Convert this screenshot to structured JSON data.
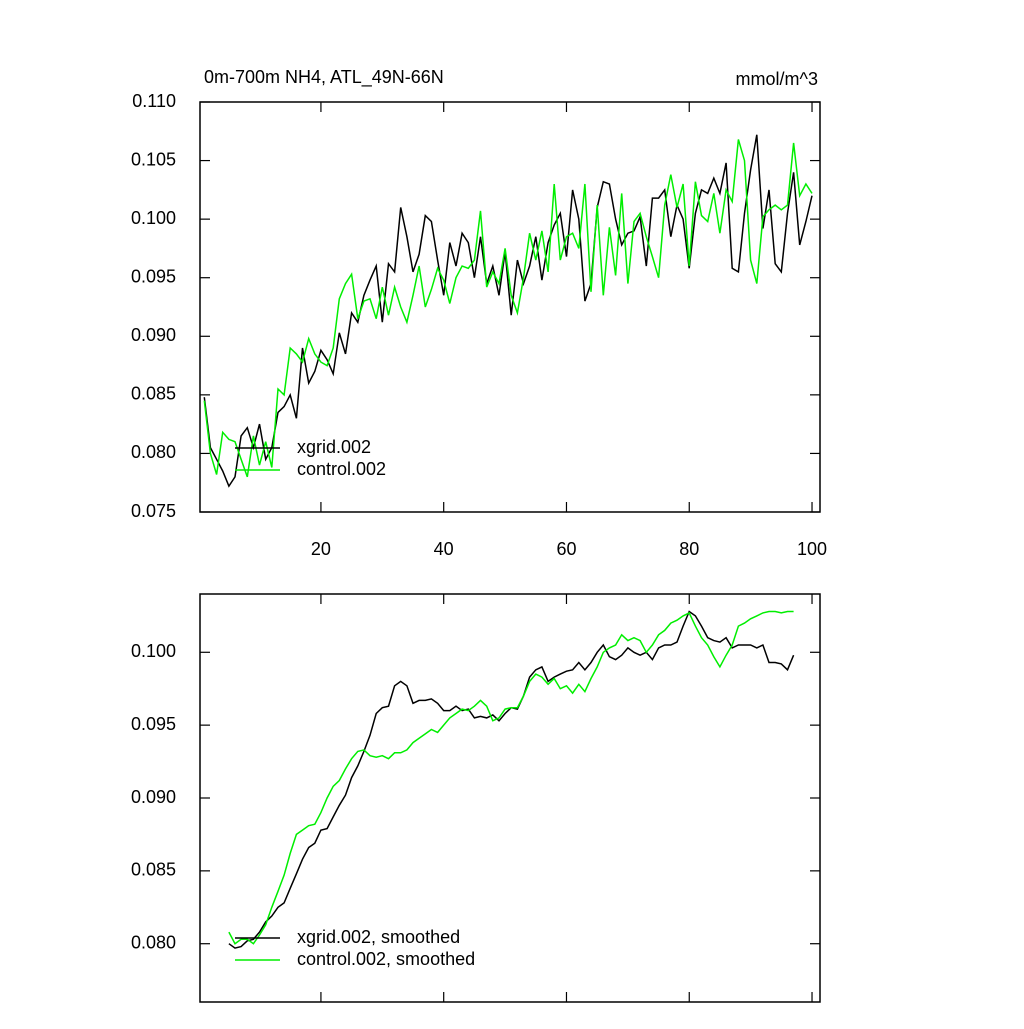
{
  "chart_data": [
    {
      "type": "line",
      "title": "0m-700m NH4, ATL_49N-66N",
      "units": "mmol/m^3",
      "x": [
        1,
        2,
        3,
        4,
        5,
        6,
        7,
        8,
        9,
        10,
        11,
        12,
        13,
        14,
        15,
        16,
        17,
        18,
        19,
        20,
        21,
        22,
        23,
        24,
        25,
        26,
        27,
        28,
        29,
        30,
        31,
        32,
        33,
        34,
        35,
        36,
        37,
        38,
        39,
        40,
        41,
        42,
        43,
        44,
        45,
        46,
        47,
        48,
        49,
        50,
        51,
        52,
        53,
        54,
        55,
        56,
        57,
        58,
        59,
        60,
        61,
        62,
        63,
        64,
        65,
        66,
        67,
        68,
        69,
        70,
        71,
        72,
        73,
        74,
        75,
        76,
        77,
        78,
        79,
        80,
        81,
        82,
        83,
        84,
        85,
        86,
        87,
        88,
        89,
        90,
        91,
        92,
        93,
        94,
        95,
        96,
        97,
        98,
        99,
        100
      ],
      "series": [
        {
          "name": "xgrid.002",
          "color": "#000000",
          "values": [
            0.0848,
            0.0805,
            0.0795,
            0.0785,
            0.0772,
            0.078,
            0.0815,
            0.0822,
            0.0805,
            0.0825,
            0.0795,
            0.0805,
            0.0835,
            0.084,
            0.085,
            0.083,
            0.089,
            0.086,
            0.087,
            0.0888,
            0.088,
            0.0868,
            0.0903,
            0.0885,
            0.092,
            0.0912,
            0.0935,
            0.0948,
            0.096,
            0.0912,
            0.0962,
            0.0955,
            0.101,
            0.0985,
            0.0955,
            0.097,
            0.1003,
            0.0998,
            0.0965,
            0.0935,
            0.098,
            0.096,
            0.0988,
            0.098,
            0.095,
            0.0985,
            0.0945,
            0.096,
            0.0935,
            0.0972,
            0.0918,
            0.0965,
            0.0945,
            0.096,
            0.0985,
            0.0948,
            0.098,
            0.0995,
            0.1005,
            0.0968,
            0.1025,
            0.1,
            0.093,
            0.0945,
            0.101,
            0.1032,
            0.103,
            0.1,
            0.0978,
            0.0988,
            0.099,
            0.1002,
            0.096,
            0.1018,
            0.1018,
            0.1025,
            0.0985,
            0.1012,
            0.1,
            0.0958,
            0.1005,
            0.1025,
            0.1022,
            0.1035,
            0.1022,
            0.1048,
            0.0958,
            0.0955,
            0.1005,
            0.1042,
            0.1072,
            0.0992,
            0.1025,
            0.0962,
            0.0955,
            0.1005,
            0.104,
            0.0978,
            0.0998,
            0.102
          ]
        },
        {
          "name": "control.002",
          "color": "#00ee00",
          "values": [
            0.0845,
            0.08,
            0.0782,
            0.0818,
            0.0812,
            0.081,
            0.0795,
            0.078,
            0.0815,
            0.079,
            0.081,
            0.0788,
            0.0855,
            0.085,
            0.089,
            0.0885,
            0.0878,
            0.0898,
            0.0885,
            0.0878,
            0.0875,
            0.089,
            0.0932,
            0.0945,
            0.0953,
            0.0915,
            0.093,
            0.0932,
            0.0915,
            0.0942,
            0.0918,
            0.0942,
            0.0925,
            0.0912,
            0.0935,
            0.096,
            0.0925,
            0.094,
            0.0958,
            0.0948,
            0.0928,
            0.095,
            0.096,
            0.0958,
            0.0965,
            0.1007,
            0.0942,
            0.0955,
            0.0945,
            0.0975,
            0.0935,
            0.092,
            0.095,
            0.0988,
            0.0965,
            0.099,
            0.0955,
            0.103,
            0.0965,
            0.0985,
            0.0988,
            0.0975,
            0.103,
            0.0938,
            0.1012,
            0.0935,
            0.0993,
            0.0952,
            0.1022,
            0.0945,
            0.0998,
            0.1005,
            0.0985,
            0.0968,
            0.095,
            0.1012,
            0.1038,
            0.101,
            0.103,
            0.096,
            0.1032,
            0.1003,
            0.0998,
            0.1022,
            0.0988,
            0.1025,
            0.1015,
            0.1068,
            0.105,
            0.0965,
            0.0945,
            0.1002,
            0.1008,
            0.1012,
            0.1008,
            0.1012,
            0.1065,
            0.102,
            0.103,
            0.1022
          ]
        }
      ],
      "xlim": [
        0.3,
        101.3
      ],
      "xticks": [
        20,
        40,
        60,
        80,
        100
      ],
      "xtick_labels": true,
      "ylim": [
        0.075,
        0.11
      ],
      "yticks": [
        0.075,
        {
          "value": 0.08,
          "label": "0.080"
        },
        0.085,
        {
          "value": 0.09,
          "label": "0.090"
        },
        0.095,
        {
          "value": 0.1,
          "label": "0.100"
        },
        0.105,
        {
          "value": 0.11,
          "label": "0.110"
        }
      ],
      "legend": "lower left"
    },
    {
      "type": "line",
      "x": [
        5,
        6,
        7,
        8,
        9,
        10,
        11,
        12,
        13,
        14,
        15,
        16,
        17,
        18,
        19,
        20,
        21,
        22,
        23,
        24,
        25,
        26,
        27,
        28,
        29,
        30,
        31,
        32,
        33,
        34,
        35,
        36,
        37,
        38,
        39,
        40,
        41,
        42,
        43,
        44,
        45,
        46,
        47,
        48,
        49,
        50,
        51,
        52,
        53,
        54,
        55,
        56,
        57,
        58,
        59,
        60,
        61,
        62,
        63,
        64,
        65,
        66,
        67,
        68,
        69,
        70,
        71,
        72,
        73,
        74,
        75,
        76,
        77,
        78,
        79,
        80,
        81,
        82,
        83,
        84,
        85,
        86,
        87,
        88,
        89,
        90,
        91,
        92,
        93,
        94,
        95,
        96,
        97
      ],
      "series": [
        {
          "name": "xgrid.002, smoothed",
          "color": "#000000",
          "values": [
            0.08,
            0.0797,
            0.0798,
            0.0802,
            0.0803,
            0.0808,
            0.0815,
            0.0819,
            0.0825,
            0.0828,
            0.0838,
            0.0848,
            0.0858,
            0.0866,
            0.0869,
            0.0878,
            0.0879,
            0.0887,
            0.0895,
            0.0902,
            0.0914,
            0.0922,
            0.0932,
            0.0943,
            0.0958,
            0.0962,
            0.0963,
            0.0977,
            0.098,
            0.0977,
            0.0965,
            0.0967,
            0.0967,
            0.0968,
            0.0965,
            0.096,
            0.096,
            0.0963,
            0.096,
            0.0961,
            0.0955,
            0.0956,
            0.0955,
            0.0957,
            0.0953,
            0.0958,
            0.0962,
            0.0961,
            0.097,
            0.0983,
            0.0988,
            0.099,
            0.098,
            0.0983,
            0.0985,
            0.0987,
            0.0988,
            0.0993,
            0.0988,
            0.0993,
            0.1,
            0.1005,
            0.0997,
            0.0995,
            0.0998,
            0.1003,
            0.1,
            0.0998,
            0.1,
            0.0995,
            0.1003,
            0.1005,
            0.1005,
            0.1007,
            0.1018,
            0.1028,
            0.1025,
            0.1018,
            0.101,
            0.1008,
            0.1007,
            0.101,
            0.1003,
            0.1005,
            0.1005,
            0.1005,
            0.1003,
            0.1005,
            0.0993,
            0.0993,
            0.0992,
            0.0988,
            0.0998
          ]
        },
        {
          "name": "control.002, smoothed",
          "color": "#00ee00",
          "values": [
            0.0808,
            0.08,
            0.0803,
            0.0803,
            0.08,
            0.0806,
            0.0813,
            0.0825,
            0.0836,
            0.0847,
            0.0862,
            0.0875,
            0.0878,
            0.0881,
            0.0882,
            0.089,
            0.09,
            0.0908,
            0.0912,
            0.092,
            0.0927,
            0.0932,
            0.0933,
            0.0929,
            0.0928,
            0.0929,
            0.0927,
            0.0931,
            0.0931,
            0.0933,
            0.0938,
            0.0941,
            0.0944,
            0.0947,
            0.0945,
            0.095,
            0.0955,
            0.0958,
            0.0961,
            0.096,
            0.0963,
            0.0967,
            0.0963,
            0.0953,
            0.0955,
            0.0961,
            0.0962,
            0.0962,
            0.097,
            0.098,
            0.0985,
            0.0983,
            0.0978,
            0.0982,
            0.0975,
            0.0977,
            0.0972,
            0.0978,
            0.0973,
            0.0982,
            0.099,
            0.1,
            0.1003,
            0.1005,
            0.1012,
            0.1008,
            0.101,
            0.1008,
            0.1,
            0.1005,
            0.1012,
            0.1015,
            0.102,
            0.1022,
            0.1025,
            0.1027,
            0.1018,
            0.101,
            0.1005,
            0.0997,
            0.099,
            0.0998,
            0.1005,
            0.1018,
            0.102,
            0.1023,
            0.1025,
            0.1027,
            0.1028,
            0.1028,
            0.1027,
            0.1028,
            0.1028
          ]
        }
      ],
      "xlim": [
        0.3,
        101.3
      ],
      "xticks": [
        20,
        40,
        60,
        80,
        100
      ],
      "xtick_labels": false,
      "ylim": [
        0.076,
        0.104
      ],
      "yticks": [
        {
          "value": 0.08,
          "label": "0.080"
        },
        0.085,
        {
          "value": 0.09,
          "label": "0.090"
        },
        0.095,
        {
          "value": 0.1,
          "label": "0.100"
        }
      ],
      "legend": "lower left"
    }
  ]
}
